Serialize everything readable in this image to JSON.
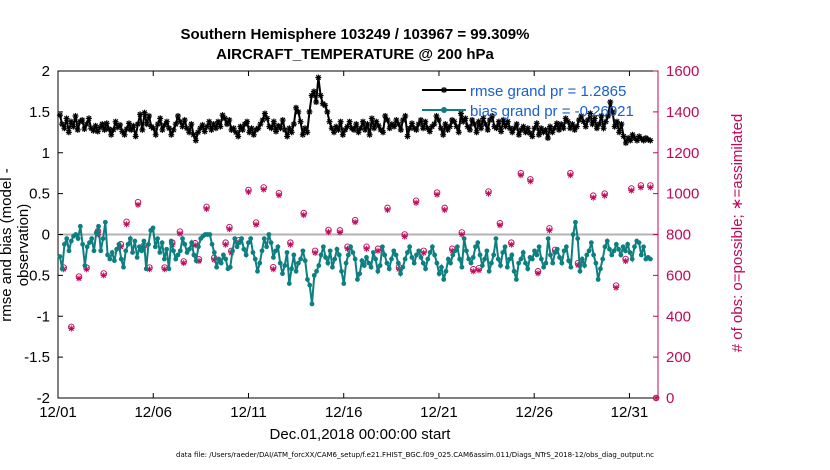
{
  "chart_data": {
    "type": "line",
    "title_line1": "Southern Hemisphere 103249 / 103967 = 99.309%",
    "title_line2": "AIRCRAFT_TEMPERATURE @ 200 hPa",
    "xlabel": "Dec.01,2018 00:00:00 start",
    "ylabel_left": "rmse and bias (model - observation)",
    "ylabel_right": "# of obs: o=possible; ∗=assimilated",
    "footnote": "data file: /Users/raeder/DAI/ATM_forcXX/CAM6_setup/f.e21.FHIST_BGC.f09_025.CAM6assim.011/Diags_NTrS_2018-12/obs_diag_output.nc",
    "xlim": [
      0,
      31.5
    ],
    "ylim_left": [
      -2,
      2
    ],
    "ylim_right": [
      0,
      1600
    ],
    "xticks": [
      "12/01",
      "12/06",
      "12/11",
      "12/16",
      "12/21",
      "12/26",
      "12/31"
    ],
    "xtick_values": [
      0,
      5,
      10,
      15,
      20,
      25,
      30
    ],
    "yticks_left": [
      "-2",
      "-1.5",
      "-1",
      "-0.5",
      "0",
      "0.5",
      "1",
      "1.5",
      "2"
    ],
    "yticks_right": [
      "0",
      "200",
      "400",
      "600",
      "800",
      "1000",
      "1200",
      "1400",
      "1600"
    ],
    "legend": {
      "rmse_label": "rmse grand pr = 1.2865",
      "bias_label": "bias grand pr = -0.26021"
    },
    "colors": {
      "rmse": "#000000",
      "bias": "#0e7f80",
      "obs": "#c0085a",
      "zero_line": "#b3b3b3"
    },
    "series": [
      {
        "name": "rmse",
        "values": [
          1.46,
          1.35,
          1.3,
          1.42,
          1.25,
          1.38,
          1.32,
          1.45,
          1.28,
          1.38,
          1.4,
          1.29,
          1.35,
          1.42,
          1.3,
          1.27,
          1.33,
          1.26,
          1.31,
          1.35,
          1.28,
          1.36,
          1.29,
          1.22,
          1.28,
          1.38,
          1.31,
          1.34,
          1.26,
          1.22,
          1.29,
          1.36,
          1.28,
          1.33,
          1.2,
          1.35,
          1.47,
          1.28,
          1.49,
          1.35,
          1.45,
          1.32,
          1.3,
          1.22,
          1.35,
          1.42,
          1.28,
          1.34,
          1.38,
          1.3,
          1.22,
          1.28,
          1.35,
          1.45,
          1.38,
          1.32,
          1.4,
          1.3,
          1.25,
          1.35,
          1.22,
          1.15,
          1.25,
          1.3,
          1.34,
          1.26,
          1.32,
          1.38,
          1.28,
          1.35,
          1.3,
          1.38,
          1.32,
          1.46,
          1.42,
          1.35,
          1.4,
          1.28,
          1.3,
          1.25,
          1.2,
          1.32,
          1.28,
          1.35,
          1.38,
          1.25,
          1.3,
          1.22,
          1.28,
          1.3,
          1.35,
          1.4,
          1.48,
          1.42,
          1.32,
          1.3,
          1.38,
          1.26,
          1.33,
          1.3,
          1.4,
          1.28,
          1.2,
          1.3,
          1.25,
          1.35,
          1.55,
          1.5,
          1.38,
          1.22,
          1.3,
          1.25,
          1.5,
          1.7,
          1.75,
          1.62,
          1.92,
          1.7,
          1.6,
          1.58,
          1.5,
          1.38,
          1.3,
          1.25,
          1.32,
          1.28,
          1.38,
          1.22,
          1.28,
          1.32,
          1.38,
          1.3,
          1.28,
          1.35,
          1.25,
          1.3,
          1.38,
          1.28,
          1.35,
          1.22,
          1.42,
          1.3,
          1.38,
          1.33,
          1.28,
          1.25,
          1.45,
          1.4,
          1.3,
          1.35,
          1.32,
          1.4,
          1.35,
          1.28,
          1.4,
          1.45,
          1.2,
          1.3,
          1.36,
          1.3,
          1.28,
          1.35,
          1.4,
          1.3,
          1.38,
          1.3,
          1.26,
          1.32,
          1.35,
          1.45,
          1.4,
          1.3,
          1.22,
          1.35,
          1.28,
          1.32,
          1.4,
          1.38,
          1.32,
          1.25,
          1.48,
          1.38,
          1.42,
          1.32,
          1.28,
          1.4,
          1.35,
          1.25,
          1.38,
          1.3,
          1.42,
          1.35,
          1.28,
          1.4,
          1.45,
          1.32,
          1.3,
          1.38,
          1.26,
          1.4,
          1.32,
          1.38,
          1.3,
          1.25,
          1.3,
          1.35,
          1.22,
          1.28,
          1.32,
          1.25,
          1.3,
          1.24,
          1.2,
          1.3,
          1.36,
          1.22,
          1.3,
          1.25,
          1.28,
          1.18,
          1.32,
          1.25,
          1.3,
          1.36,
          1.28,
          1.35,
          1.3,
          1.42,
          1.38,
          1.3,
          1.35,
          1.28,
          1.32,
          1.4,
          1.45,
          1.38,
          1.32,
          1.4,
          1.48,
          1.35,
          1.42,
          1.3,
          1.35,
          1.45,
          1.3,
          1.38,
          1.45,
          1.62,
          1.5,
          1.32,
          1.38,
          1.25,
          1.35,
          1.2,
          1.12,
          1.18,
          1.15,
          1.22,
          1.18,
          1.15,
          1.2,
          1.17,
          1.15,
          1.18,
          1.16,
          1.15
        ]
      },
      {
        "name": "bias",
        "values": [
          -0.27,
          -0.42,
          -0.12,
          -0.05,
          -0.2,
          -0.08,
          -0.02,
          0.0,
          -0.05,
          0.1,
          -0.12,
          -0.38,
          -0.15,
          -0.1,
          -0.05,
          -0.2,
          0.02,
          0.1,
          -0.2,
          -0.05,
          0.15,
          -0.25,
          -0.3,
          -0.22,
          -0.32,
          -0.18,
          -0.12,
          -0.3,
          -0.4,
          -0.2,
          -0.12,
          -0.05,
          -0.22,
          -0.08,
          -0.28,
          -0.15,
          -0.2,
          -0.08,
          -0.42,
          -0.12,
          0.05,
          0.08,
          -0.15,
          -0.05,
          -0.22,
          -0.1,
          -0.3,
          -0.18,
          -0.42,
          -0.08,
          -0.2,
          -0.3,
          -0.25,
          -0.2,
          -0.05,
          -0.12,
          -0.22,
          -0.18,
          -0.1,
          -0.25,
          -0.32,
          -0.15,
          -0.05,
          -0.02,
          0.0,
          0.0,
          0.0,
          -0.12,
          -0.22,
          -0.4,
          -0.3,
          -0.35,
          -0.25,
          -0.3,
          -0.42,
          -0.4,
          -0.2,
          -0.05,
          -0.15,
          -0.1,
          -0.05,
          -0.18,
          -0.25,
          -0.1,
          -0.05,
          -0.22,
          -0.3,
          -0.45,
          -0.35,
          -0.2,
          -0.05,
          -0.15,
          0.0,
          -0.1,
          -0.28,
          -0.2,
          -0.15,
          -0.35,
          -0.48,
          -0.38,
          -0.22,
          -0.6,
          -0.42,
          -0.25,
          -0.45,
          -0.35,
          -0.3,
          -0.2,
          -0.32,
          -0.55,
          -0.62,
          -0.85,
          -0.5,
          -0.45,
          -0.38,
          -0.25,
          -0.15,
          -0.28,
          -0.35,
          -0.2,
          -0.4,
          -0.3,
          -0.18,
          -0.25,
          -0.45,
          -0.6,
          -0.35,
          -0.25,
          -0.15,
          -0.22,
          -0.3,
          -0.55,
          -0.48,
          -0.32,
          -0.38,
          -0.28,
          -0.35,
          -0.4,
          -0.22,
          -0.3,
          -0.45,
          -0.38,
          -0.15,
          -0.25,
          -0.35,
          -0.42,
          -0.3,
          -0.2,
          -0.25,
          -0.35,
          -0.48,
          -0.4,
          -0.3,
          -0.22,
          -0.15,
          -0.28,
          -0.35,
          -0.25,
          -0.2,
          -0.28,
          -0.35,
          -0.42,
          -0.3,
          -0.22,
          -0.15,
          -0.25,
          -0.35,
          -0.48,
          -0.4,
          -0.55,
          -0.45,
          -0.3,
          -0.35,
          -0.25,
          -0.2,
          -0.15,
          -0.3,
          -0.4,
          -0.05,
          -0.2,
          -0.3,
          -0.35,
          -0.28,
          -0.15,
          -0.1,
          -0.25,
          -0.38,
          -0.3,
          -0.2,
          -0.45,
          -0.35,
          -0.25,
          -0.05,
          -0.3,
          -0.38,
          -0.22,
          -0.15,
          -0.4,
          -0.3,
          -0.25,
          -0.45,
          -0.55,
          -0.35,
          -0.3,
          -0.22,
          -0.35,
          -0.42,
          -0.28,
          -0.3,
          -0.2,
          -0.25,
          -0.15,
          -0.3,
          -0.4,
          -0.35,
          -0.05,
          -0.25,
          -0.35,
          -0.22,
          -0.18,
          -0.28,
          -0.35,
          -0.2,
          -0.15,
          -0.32,
          -0.4,
          0.0,
          0.15,
          -0.05,
          -0.45,
          -0.3,
          -0.38,
          -0.25,
          -0.2,
          -0.1,
          -0.25,
          -0.35,
          -0.55,
          -0.42,
          -0.3,
          -0.15,
          -0.08,
          -0.18,
          -0.25,
          -0.2,
          -0.12,
          -0.18,
          -0.25,
          -0.15,
          -0.2,
          -0.12,
          -0.22,
          -0.3,
          -0.15,
          -0.08,
          -0.1,
          -0.25,
          -0.15,
          -0.3,
          -0.28,
          -0.3
        ]
      },
      {
        "name": "obs_possible",
        "points": [
          [
            0.3,
            638
          ],
          [
            0.7,
            348
          ],
          [
            1.1,
            594
          ],
          [
            1.5,
            638
          ],
          [
            2.1,
            816
          ],
          [
            2.4,
            609
          ],
          [
            3.3,
            752
          ],
          [
            3.6,
            862
          ],
          [
            4.2,
            958
          ],
          [
            4.5,
            745
          ],
          [
            4.8,
            638
          ],
          [
            5.6,
            638
          ],
          [
            6.0,
            760
          ],
          [
            6.4,
            814
          ],
          [
            6.6,
            668
          ],
          [
            7.2,
            757
          ],
          [
            7.4,
            678
          ],
          [
            7.8,
            935
          ],
          [
            8.2,
            686
          ],
          [
            8.8,
            760
          ],
          [
            9.0,
            836
          ],
          [
            9.1,
            720
          ],
          [
            9.5,
            772
          ],
          [
            10.0,
            1018
          ],
          [
            10.4,
            858
          ],
          [
            10.8,
            1030
          ],
          [
            11.3,
            640
          ],
          [
            11.6,
            1002
          ],
          [
            12.2,
            760
          ],
          [
            12.9,
            905
          ],
          [
            13.5,
            720
          ],
          [
            14.2,
            822
          ],
          [
            14.8,
            820
          ],
          [
            15.2,
            740
          ],
          [
            15.6,
            870
          ],
          [
            16.2,
            740
          ],
          [
            16.8,
            730
          ],
          [
            17.3,
            930
          ],
          [
            17.9,
            640
          ],
          [
            18.2,
            800
          ],
          [
            18.8,
            965
          ],
          [
            19.2,
            720
          ],
          [
            19.9,
            1005
          ],
          [
            20.3,
            930
          ],
          [
            20.7,
            730
          ],
          [
            21.2,
            810
          ],
          [
            21.8,
            630
          ],
          [
            22.1,
            635
          ],
          [
            22.6,
            1010
          ],
          [
            23.2,
            855
          ],
          [
            23.8,
            760
          ],
          [
            24.3,
            1100
          ],
          [
            24.8,
            1070
          ],
          [
            25.2,
            620
          ],
          [
            25.8,
            830
          ],
          [
            26.1,
            725
          ],
          [
            26.9,
            1100
          ],
          [
            27.3,
            660
          ],
          [
            28.1,
            990
          ],
          [
            28.7,
            1000
          ],
          [
            29.3,
            550
          ],
          [
            29.8,
            680
          ],
          [
            30.1,
            1025
          ],
          [
            30.6,
            1040
          ],
          [
            31.1,
            1040
          ],
          [
            31.4,
            0
          ]
        ]
      },
      {
        "name": "obs_assimilated",
        "points": [
          [
            0.3,
            630
          ],
          [
            0.7,
            340
          ],
          [
            1.1,
            585
          ],
          [
            1.5,
            630
          ],
          [
            2.1,
            800
          ],
          [
            2.4,
            600
          ],
          [
            3.3,
            740
          ],
          [
            3.6,
            850
          ],
          [
            4.2,
            945
          ],
          [
            4.5,
            735
          ],
          [
            4.8,
            630
          ],
          [
            5.6,
            630
          ],
          [
            6.0,
            750
          ],
          [
            6.4,
            804
          ],
          [
            6.6,
            660
          ],
          [
            7.2,
            747
          ],
          [
            7.4,
            670
          ],
          [
            7.8,
            925
          ],
          [
            8.2,
            676
          ],
          [
            8.8,
            750
          ],
          [
            9.0,
            826
          ],
          [
            9.1,
            710
          ],
          [
            9.5,
            762
          ],
          [
            10.0,
            1008
          ],
          [
            10.4,
            848
          ],
          [
            10.8,
            1020
          ],
          [
            11.3,
            630
          ],
          [
            11.6,
            992
          ],
          [
            12.2,
            750
          ],
          [
            12.9,
            895
          ],
          [
            13.5,
            710
          ],
          [
            14.2,
            812
          ],
          [
            14.8,
            810
          ],
          [
            15.2,
            730
          ],
          [
            15.6,
            860
          ],
          [
            16.2,
            730
          ],
          [
            16.8,
            720
          ],
          [
            17.3,
            920
          ],
          [
            17.9,
            630
          ],
          [
            18.2,
            790
          ],
          [
            18.8,
            955
          ],
          [
            19.2,
            710
          ],
          [
            19.9,
            995
          ],
          [
            20.3,
            920
          ],
          [
            20.7,
            720
          ],
          [
            21.2,
            800
          ],
          [
            21.8,
            620
          ],
          [
            22.1,
            625
          ],
          [
            22.6,
            1000
          ],
          [
            23.2,
            845
          ],
          [
            23.8,
            750
          ],
          [
            24.3,
            1090
          ],
          [
            24.8,
            1060
          ],
          [
            25.2,
            610
          ],
          [
            25.8,
            820
          ],
          [
            26.1,
            715
          ],
          [
            26.9,
            1090
          ],
          [
            27.3,
            650
          ],
          [
            28.1,
            980
          ],
          [
            28.7,
            990
          ],
          [
            29.3,
            540
          ],
          [
            29.8,
            670
          ],
          [
            30.1,
            1015
          ],
          [
            30.6,
            1030
          ],
          [
            31.1,
            1030
          ],
          [
            31.4,
            0
          ]
        ]
      }
    ]
  }
}
